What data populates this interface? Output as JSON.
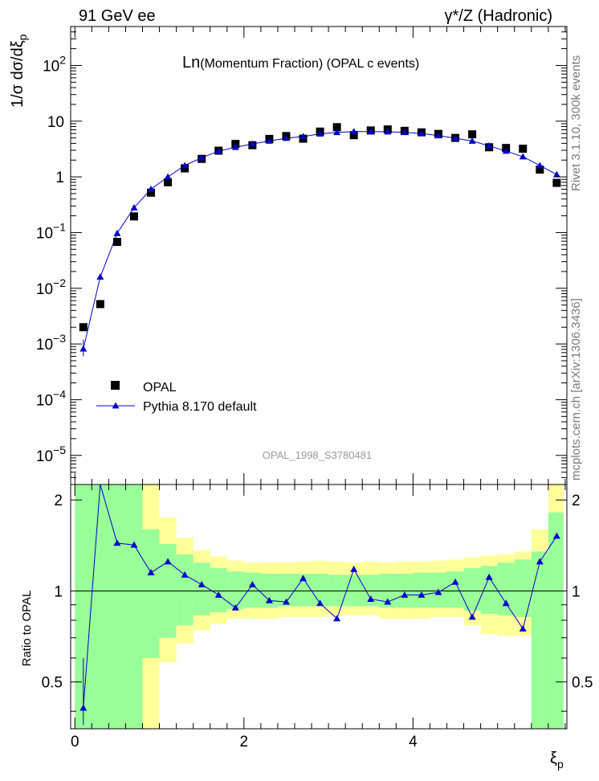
{
  "header": {
    "left": "91 GeV ee",
    "right": "γ*/Z (Hadronic)"
  },
  "side_labels": {
    "rivet": "Rivet 3.1.10,  300k events",
    "mcplots": "mcplots.cern.ch [arXiv:1306.3436]"
  },
  "chart_data": [
    {
      "type": "scatter",
      "title_main": "Ln",
      "title_rest": "(Momentum Fraction) (OPAL c events)",
      "watermark": "OPAL_1998_S3780481",
      "ylabel": "1/σ dσ/dξ",
      "ylabel_sub": "p",
      "yscale": "log",
      "xlim": [
        -0.05,
        5.82
      ],
      "ylim": [
        3e-06,
        500
      ],
      "yticks": [
        {
          "value": 100,
          "base": "10",
          "exp": "2"
        },
        {
          "value": 10,
          "base": "10",
          "exp": ""
        },
        {
          "value": 1,
          "base": "1",
          "exp": ""
        },
        {
          "value": 0.1,
          "base": "10",
          "exp": "−1"
        },
        {
          "value": 0.01,
          "base": "10",
          "exp": "−2"
        },
        {
          "value": 0.001,
          "base": "10",
          "exp": "−3"
        },
        {
          "value": 0.0001,
          "base": "10",
          "exp": "−4"
        },
        {
          "value": 1e-05,
          "base": "10",
          "exp": "−5"
        }
      ],
      "legend": {
        "position": "lower-left",
        "entries": [
          "OPAL",
          "Pythia 8.170 default"
        ]
      },
      "x": [
        0.1,
        0.3,
        0.5,
        0.7,
        0.9,
        1.1,
        1.3,
        1.5,
        1.7,
        1.9,
        2.1,
        2.3,
        2.5,
        2.7,
        2.9,
        3.1,
        3.3,
        3.5,
        3.7,
        3.9,
        4.1,
        4.3,
        4.5,
        4.7,
        4.9,
        5.1,
        5.3,
        5.5,
        5.7
      ],
      "series": [
        {
          "name": "OPAL",
          "marker": "square",
          "color": "#000000",
          "values": [
            0.002,
            0.0052,
            0.068,
            0.195,
            0.52,
            0.8,
            1.42,
            2.1,
            2.95,
            3.9,
            3.7,
            4.8,
            5.4,
            4.85,
            6.5,
            7.8,
            5.6,
            6.8,
            7.1,
            6.7,
            6.3,
            5.9,
            5.0,
            5.8,
            3.4,
            3.3,
            3.2,
            1.35,
            0.78
          ]
        },
        {
          "name": "Pythia 8.170 default",
          "marker": "triangle",
          "color": "#0000cc",
          "values": [
            0.00082,
            0.016,
            0.097,
            0.28,
            0.6,
            1.0,
            1.6,
            2.2,
            2.9,
            3.4,
            3.9,
            4.4,
            4.95,
            5.3,
            5.9,
            6.3,
            6.5,
            6.5,
            6.45,
            6.3,
            6.0,
            5.5,
            4.95,
            4.4,
            3.6,
            2.9,
            2.3,
            1.6,
            1.1
          ]
        }
      ]
    },
    {
      "type": "line",
      "ylabel": "Ratio to OPAL",
      "xlabel": "ξ",
      "xlabel_sub": "p",
      "xlim": [
        -0.05,
        5.82
      ],
      "ylim": [
        0.35,
        2.25
      ],
      "yticks": [
        "0.5",
        "1",
        "2"
      ],
      "xticks": [
        "0",
        "2",
        "4"
      ],
      "reference_line": 1,
      "x": [
        0.1,
        0.3,
        0.5,
        0.7,
        0.9,
        1.1,
        1.3,
        1.5,
        1.7,
        1.9,
        2.1,
        2.3,
        2.5,
        2.7,
        2.9,
        3.1,
        3.3,
        3.5,
        3.7,
        3.9,
        4.1,
        4.3,
        4.5,
        4.7,
        4.9,
        5.1,
        5.3,
        5.5,
        5.7
      ],
      "series": [
        {
          "name": "Pythia 8.170 default",
          "color": "#0000cc",
          "values": [
            0.41,
            3.0,
            1.44,
            1.42,
            1.15,
            1.25,
            1.13,
            1.05,
            0.97,
            0.88,
            1.05,
            0.93,
            0.92,
            1.1,
            0.91,
            0.81,
            1.18,
            0.94,
            0.92,
            0.97,
            0.97,
            0.99,
            1.07,
            0.82,
            1.11,
            0.91,
            0.75,
            1.25,
            1.52
          ]
        }
      ],
      "band_edges": [
        0.0,
        0.6,
        0.8,
        1.0,
        1.2,
        1.4,
        1.6,
        1.8,
        2.0,
        2.2,
        2.4,
        2.6,
        2.8,
        3.0,
        3.2,
        3.4,
        3.6,
        3.8,
        4.0,
        4.2,
        4.4,
        4.6,
        4.8,
        5.0,
        5.2,
        5.4,
        5.6,
        5.78
      ],
      "band_green": {
        "lo": [
          0.3,
          0.3,
          0.6,
          0.7,
          0.77,
          0.83,
          0.85,
          0.87,
          0.88,
          0.88,
          0.89,
          0.89,
          0.89,
          0.89,
          0.89,
          0.89,
          0.88,
          0.88,
          0.88,
          0.88,
          0.88,
          0.86,
          0.84,
          0.83,
          0.82,
          0.3,
          0.3
        ],
        "hi": [
          3.0,
          3.0,
          1.6,
          1.43,
          1.32,
          1.24,
          1.19,
          1.16,
          1.15,
          1.14,
          1.14,
          1.14,
          1.14,
          1.13,
          1.13,
          1.13,
          1.14,
          1.14,
          1.15,
          1.15,
          1.16,
          1.19,
          1.21,
          1.24,
          1.27,
          1.35,
          1.82
        ]
      },
      "band_yellow": {
        "lo": [
          0.3,
          0.3,
          0.3,
          0.58,
          0.67,
          0.74,
          0.78,
          0.81,
          0.81,
          0.81,
          0.82,
          0.82,
          0.82,
          0.83,
          0.83,
          0.83,
          0.81,
          0.81,
          0.81,
          0.82,
          0.82,
          0.77,
          0.72,
          0.71,
          0.71,
          0.3,
          0.3
        ],
        "hi": [
          3.0,
          3.0,
          3.0,
          1.75,
          1.5,
          1.36,
          1.3,
          1.26,
          1.24,
          1.24,
          1.24,
          1.25,
          1.26,
          1.25,
          1.24,
          1.25,
          1.24,
          1.25,
          1.25,
          1.26,
          1.27,
          1.29,
          1.31,
          1.32,
          1.35,
          1.6,
          3.0
        ]
      }
    }
  ]
}
